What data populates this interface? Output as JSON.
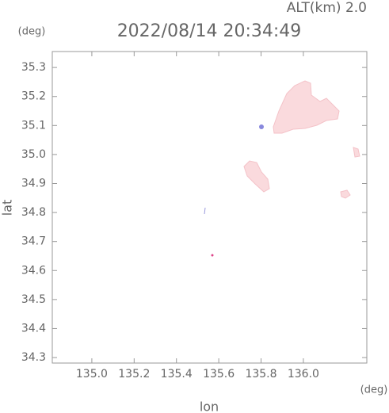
{
  "chart_data": {
    "type": "map",
    "title": "2022/08/14 20:34:49",
    "altitude_label": "ALT(km) 2.0",
    "y_unit": "(deg)",
    "x_unit": "(deg)",
    "x_label": "lon",
    "y_label": "lat",
    "xlim": [
      134.813,
      136.3
    ],
    "ylim": [
      34.281,
      35.355
    ],
    "xticks": [
      {
        "value": 135.0,
        "label": "135.0"
      },
      135.2,
      135.4,
      135.6,
      135.8,
      {
        "value": 136.0,
        "label": "136.0"
      }
    ],
    "yticks": [
      34.3,
      34.4,
      34.5,
      34.6,
      34.7,
      34.8,
      34.9,
      {
        "value": 35.0,
        "label": "35.0"
      },
      35.1,
      35.2,
      35.3
    ]
  }
}
